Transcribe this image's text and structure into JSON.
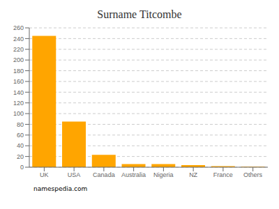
{
  "chart_data": {
    "type": "bar",
    "title": "Surname Titcombe",
    "categories": [
      "UK",
      "USA",
      "Canada",
      "Australia",
      "Nigeria",
      "NZ",
      "France",
      "Others"
    ],
    "values": [
      245,
      85,
      23,
      6,
      6,
      4,
      2,
      1
    ],
    "color": "#FFA500",
    "ylim": [
      0,
      260
    ],
    "yticks": [
      0,
      20,
      40,
      60,
      80,
      100,
      120,
      140,
      160,
      180,
      200,
      220,
      240,
      260
    ],
    "grid": true,
    "annotations": [
      "namespedia.com"
    ]
  }
}
